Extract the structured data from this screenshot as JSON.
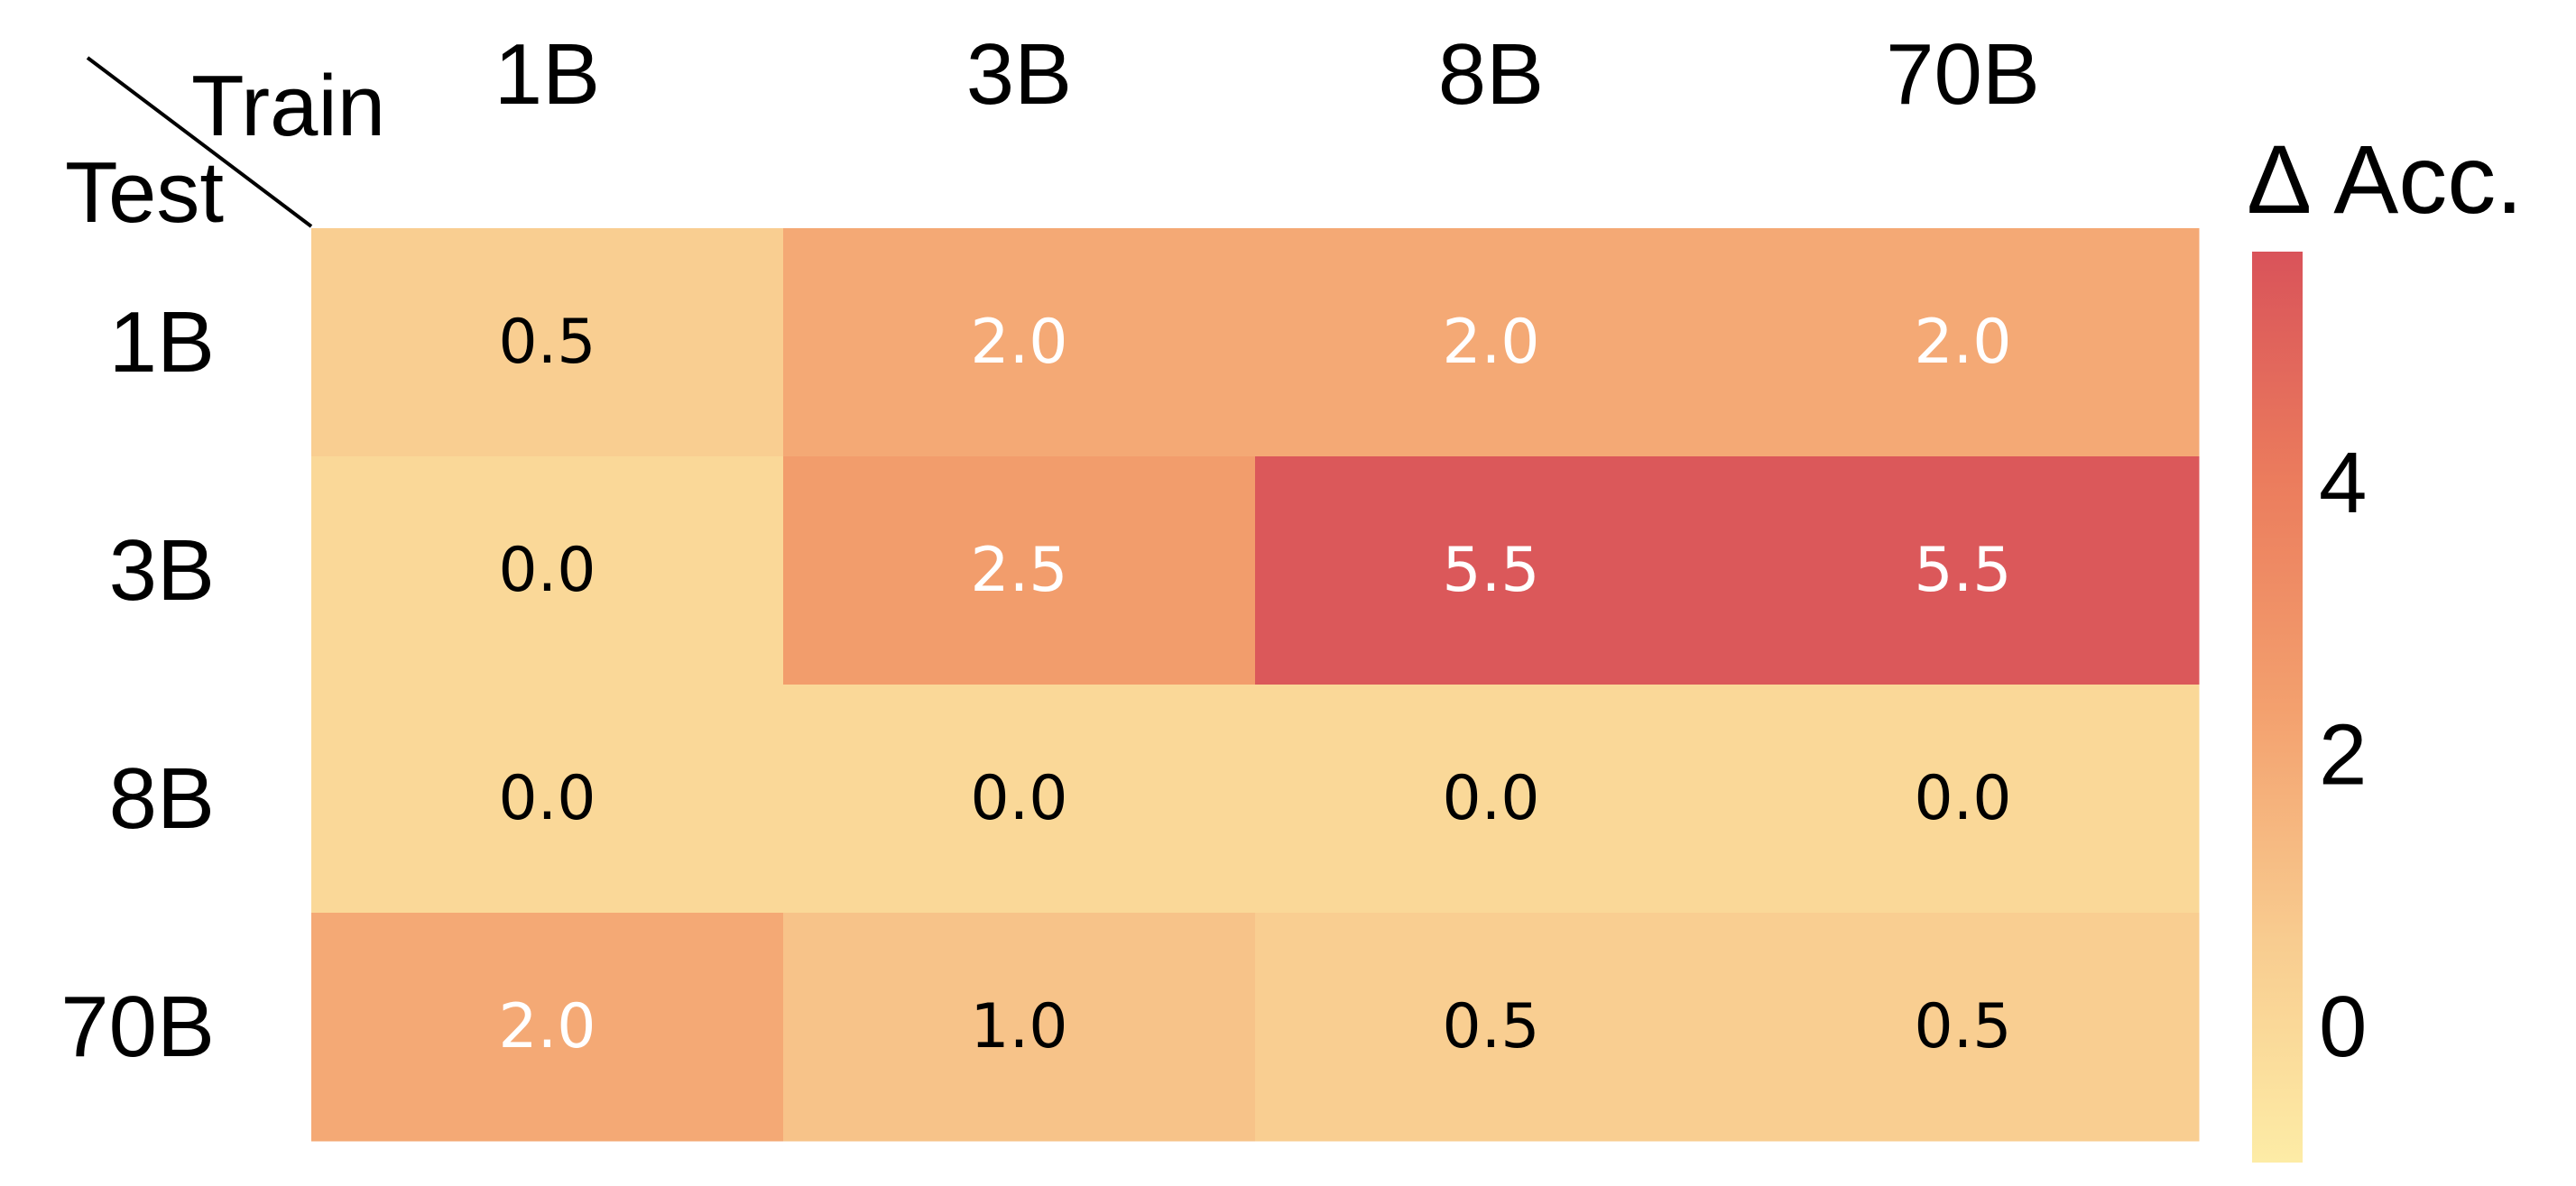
{
  "chart_data": {
    "type": "heatmap",
    "x_axis_name": "Train",
    "y_axis_name": "Test",
    "x_categories": [
      "1B",
      "3B",
      "8B",
      "70B"
    ],
    "y_categories": [
      "1B",
      "3B",
      "8B",
      "70B"
    ],
    "values": [
      [
        0.5,
        2.0,
        2.0,
        2.0
      ],
      [
        0.0,
        2.5,
        5.5,
        5.5
      ],
      [
        0.0,
        0.0,
        0.0,
        0.0
      ],
      [
        2.0,
        1.0,
        0.5,
        0.5
      ]
    ],
    "value_labels": [
      [
        "0.5",
        "2.0",
        "2.0",
        "2.0"
      ],
      [
        "0.0",
        "2.5",
        "5.5",
        "5.5"
      ],
      [
        "0.0",
        "0.0",
        "0.0",
        "0.0"
      ],
      [
        "2.0",
        "1.0",
        "0.5",
        "0.5"
      ]
    ],
    "colorbar": {
      "title": "Δ Acc.",
      "ticks": [
        0,
        2,
        4
      ],
      "tick_labels": [
        "0",
        "2",
        "4"
      ],
      "range": [
        -1,
        5.7
      ]
    },
    "colormap": [
      "#fdeca6",
      "#f8cb8f",
      "#f3a06e",
      "#eb7c5d",
      "#d9535a"
    ],
    "text_color_dark": "#000000",
    "text_color_light": "#ffffff",
    "colorbar_position": "right",
    "grid": false
  }
}
